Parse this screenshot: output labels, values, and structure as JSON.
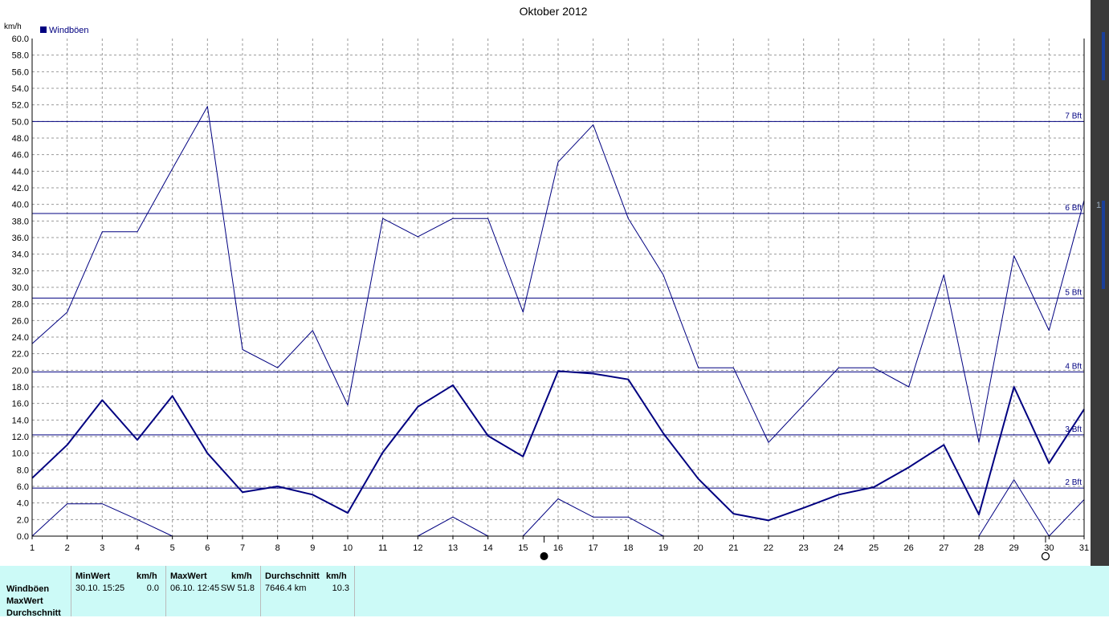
{
  "title": "Oktober 2012",
  "unit_label": "km/h",
  "legend": {
    "label": "Windböen",
    "color": "#000080"
  },
  "stats": {
    "row_labels": [
      "Windböen",
      "MaxWert",
      "Durchschnitt"
    ],
    "min": {
      "header": "MinWert",
      "unit": "km/h",
      "time": "30.10.  15:25",
      "value": "0.0"
    },
    "max": {
      "header": "MaxWert",
      "unit": "km/h",
      "time": "06.10.  12:45",
      "dir_value": "SW 51.8"
    },
    "avg": {
      "header": "Durchschnitt",
      "unit": "km/h",
      "distance": "7646.4 km",
      "value": "10.3"
    }
  },
  "right_strip": {
    "label": "1"
  },
  "chart_data": {
    "type": "line",
    "title": "Oktober 2012",
    "ylabel": "km/h",
    "ylim": [
      0,
      60
    ],
    "xlim": [
      1,
      31
    ],
    "x": [
      1,
      2,
      3,
      4,
      5,
      6,
      7,
      8,
      9,
      10,
      11,
      12,
      13,
      14,
      15,
      16,
      17,
      18,
      19,
      20,
      21,
      22,
      23,
      24,
      25,
      26,
      27,
      28,
      29,
      30,
      31
    ],
    "x_tick_labels": [
      "1",
      "2",
      "3",
      "4",
      "5",
      "6",
      "7",
      "8",
      "9",
      "10",
      "11",
      "12",
      "13",
      "14",
      "15",
      "16",
      "17",
      "18",
      "19",
      "20",
      "21",
      "22",
      "23",
      "24",
      "25",
      "26",
      "27",
      "28",
      "29",
      "30",
      "31"
    ],
    "y_tick_labels": [
      "0.0",
      "2.0",
      "4.0",
      "6.0",
      "8.0",
      "10.0",
      "12.0",
      "14.0",
      "16.0",
      "18.0",
      "20.0",
      "22.0",
      "24.0",
      "26.0",
      "28.0",
      "30.0",
      "32.0",
      "34.0",
      "36.0",
      "38.0",
      "40.0",
      "42.0",
      "44.0",
      "46.0",
      "48.0",
      "50.0",
      "52.0",
      "54.0",
      "56.0",
      "58.0",
      "60.0"
    ],
    "grid": true,
    "series": [
      {
        "name": "Windböen",
        "role": "max",
        "color": "#000080",
        "values": [
          23.2,
          27.0,
          36.7,
          36.7,
          44.3,
          51.8,
          22.5,
          20.3,
          24.8,
          15.8,
          38.3,
          36.1,
          38.3,
          38.3,
          27.0,
          45.1,
          49.6,
          38.3,
          31.5,
          20.3,
          20.3,
          11.3,
          15.8,
          20.3,
          20.3,
          18.0,
          31.5,
          11.3,
          33.8,
          24.8,
          40.5
        ]
      },
      {
        "role": "avg",
        "color": "#000080",
        "values": [
          7.0,
          11.0,
          16.4,
          11.6,
          16.9,
          10.0,
          5.3,
          6.0,
          5.0,
          2.8,
          10.1,
          15.6,
          18.2,
          12.1,
          9.6,
          19.9,
          19.6,
          18.9,
          12.4,
          6.9,
          2.7,
          1.9,
          3.4,
          5.0,
          5.9,
          8.3,
          11.0,
          2.6,
          18.0,
          8.8,
          15.3
        ]
      },
      {
        "role": "min",
        "color": "#000080",
        "values": [
          0.0,
          3.9,
          3.9,
          2.0,
          0.0,
          null,
          null,
          null,
          null,
          null,
          null,
          0.0,
          2.3,
          0.0,
          0.0,
          4.5,
          2.3,
          2.3,
          0.0,
          null,
          null,
          null,
          null,
          null,
          null,
          null,
          null,
          0.0,
          6.8,
          0.0,
          4.4
        ]
      }
    ],
    "reference_lines": [
      {
        "label": "2 Bft",
        "value": 5.8
      },
      {
        "label": "3 Bft",
        "value": 12.2
      },
      {
        "label": "4 Bft",
        "value": 19.8
      },
      {
        "label": "5 Bft",
        "value": 28.7
      },
      {
        "label": "6 Bft",
        "value": 38.9
      },
      {
        "label": "7 Bft",
        "value": 50.0
      }
    ],
    "moon_phases": [
      {
        "phase": "new-moon",
        "x": 15.6
      },
      {
        "phase": "full-moon",
        "x": 29.9
      }
    ]
  }
}
